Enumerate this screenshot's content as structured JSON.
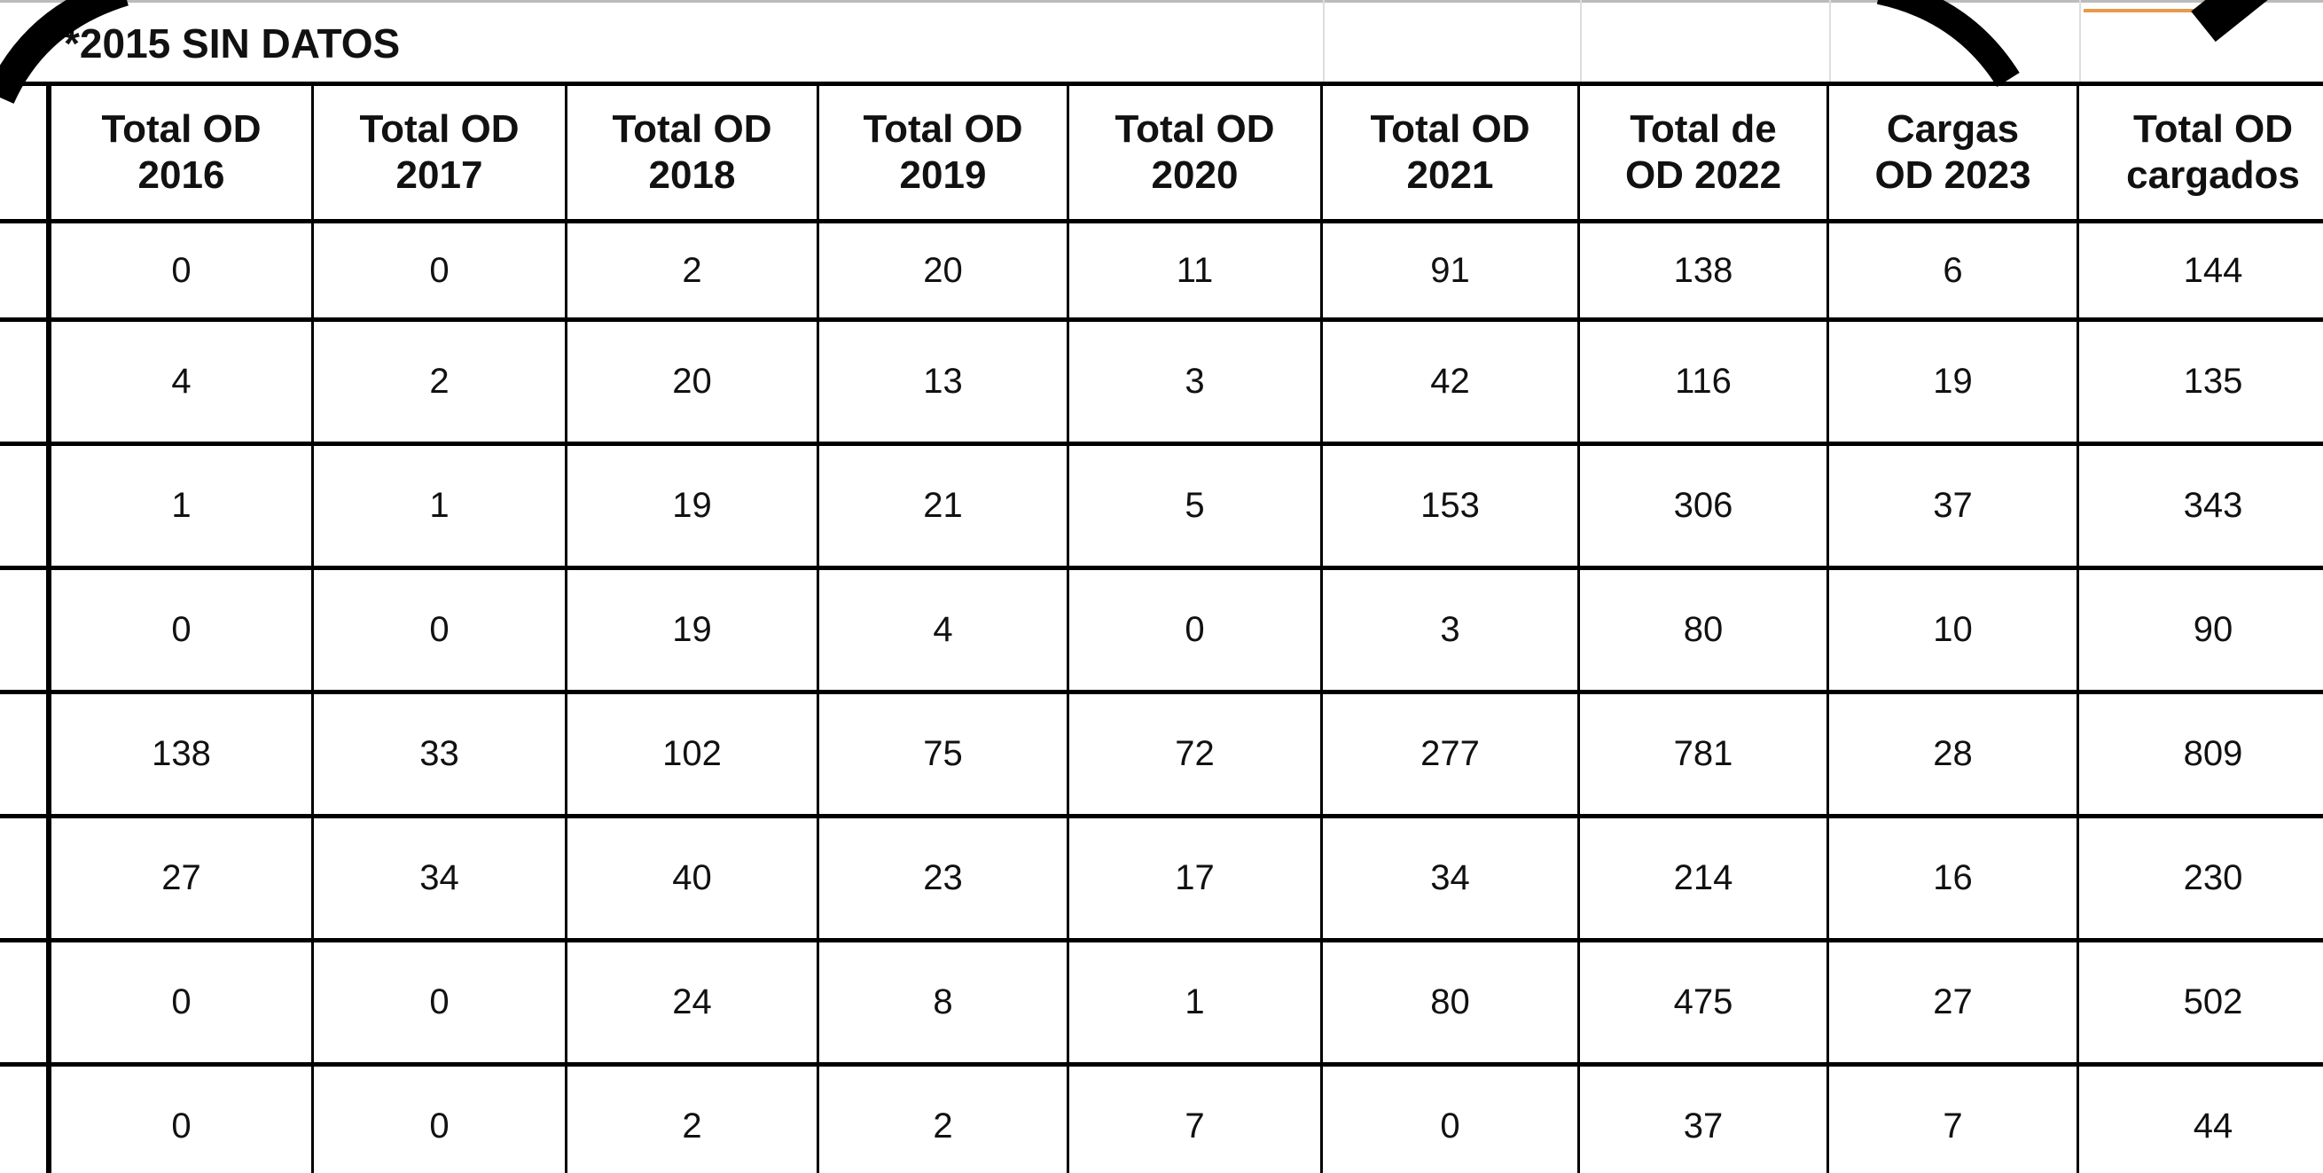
{
  "note": "*2015 SIN DATOS",
  "table": {
    "headers": [
      [
        "Total OD",
        "2016"
      ],
      [
        "Total OD",
        "2017"
      ],
      [
        "Total OD",
        "2018"
      ],
      [
        "Total OD",
        "2019"
      ],
      [
        "Total OD",
        "2020"
      ],
      [
        "Total OD",
        "2021"
      ],
      [
        "Total de",
        "OD 2022"
      ],
      [
        "Cargas",
        "OD 2023"
      ],
      [
        "Total OD",
        "cargados"
      ]
    ],
    "rows": [
      [
        0,
        0,
        2,
        20,
        11,
        91,
        138,
        6,
        144
      ],
      [
        4,
        2,
        20,
        13,
        3,
        42,
        116,
        19,
        135
      ],
      [
        1,
        1,
        19,
        21,
        5,
        153,
        306,
        37,
        343
      ],
      [
        0,
        0,
        19,
        4,
        0,
        3,
        80,
        10,
        90
      ],
      [
        138,
        33,
        102,
        75,
        72,
        277,
        781,
        28,
        809
      ],
      [
        27,
        34,
        40,
        23,
        17,
        34,
        214,
        16,
        230
      ],
      [
        0,
        0,
        24,
        8,
        1,
        80,
        475,
        27,
        502
      ],
      [
        0,
        0,
        2,
        2,
        7,
        0,
        37,
        7,
        44
      ]
    ]
  }
}
